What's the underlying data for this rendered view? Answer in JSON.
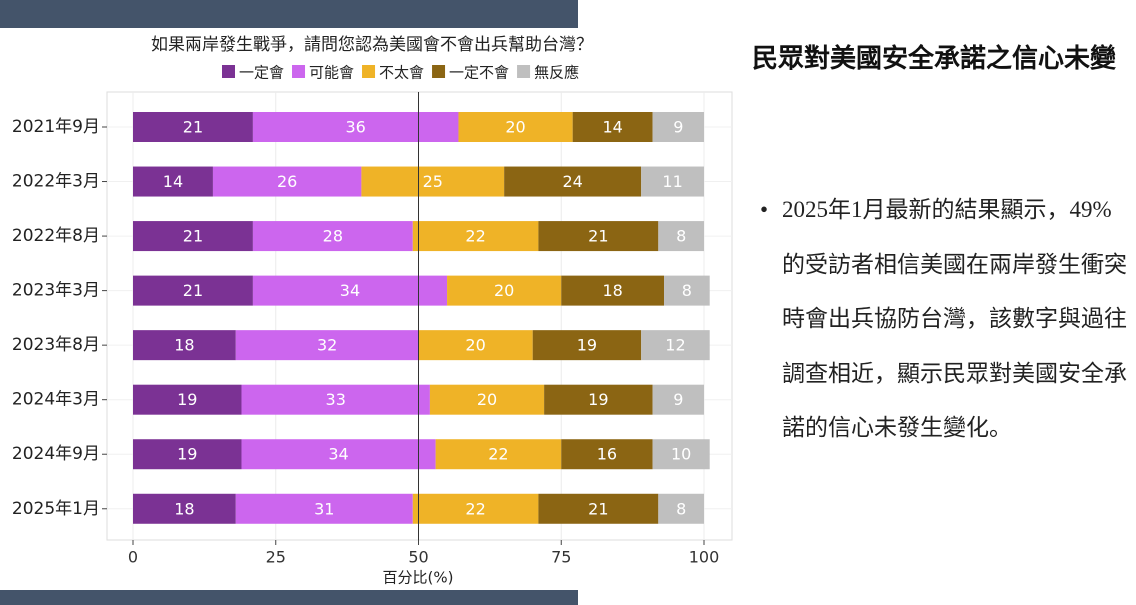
{
  "chart_data": {
    "type": "bar",
    "orientation": "horizontal",
    "stacked": true,
    "title": "如果兩岸發生戰爭，請問您認為美國會不會出兵幫助台灣？",
    "xlabel": "百分比(%)",
    "categories": [
      "2021年9月",
      "2022年3月",
      "2022年8月",
      "2023年3月",
      "2023年8月",
      "2024年3月",
      "2024年9月",
      "2025年1月"
    ],
    "series": [
      {
        "name": "一定會",
        "color": "#7b3294",
        "values": [
          21,
          14,
          21,
          21,
          18,
          19,
          19,
          18
        ]
      },
      {
        "name": "可能會",
        "color": "#cc66ee",
        "values": [
          36,
          26,
          28,
          34,
          32,
          33,
          34,
          31
        ]
      },
      {
        "name": "不太會",
        "color": "#efb327",
        "values": [
          20,
          25,
          22,
          20,
          20,
          20,
          22,
          22
        ]
      },
      {
        "name": "一定不會",
        "color": "#8b6513",
        "values": [
          14,
          24,
          21,
          18,
          19,
          19,
          16,
          21
        ]
      },
      {
        "name": "無反應",
        "color": "#bfbfbf",
        "values": [
          9,
          11,
          8,
          8,
          12,
          9,
          10,
          8
        ]
      }
    ],
    "xlim": [
      0,
      100
    ],
    "xticks": [
      0,
      25,
      50,
      75,
      100
    ],
    "grid": true,
    "reference_line": 50
  },
  "slide": {
    "heading": "民眾對美國安全承諾之信心未變",
    "bullet": "2025年1月最新的結果顯示，49%的受訪者相信美國在兩岸發生衝突時會出兵協防台灣，該數字與過往調查相近，顯示民眾對美國安全承諾的信心未發生變化。"
  }
}
